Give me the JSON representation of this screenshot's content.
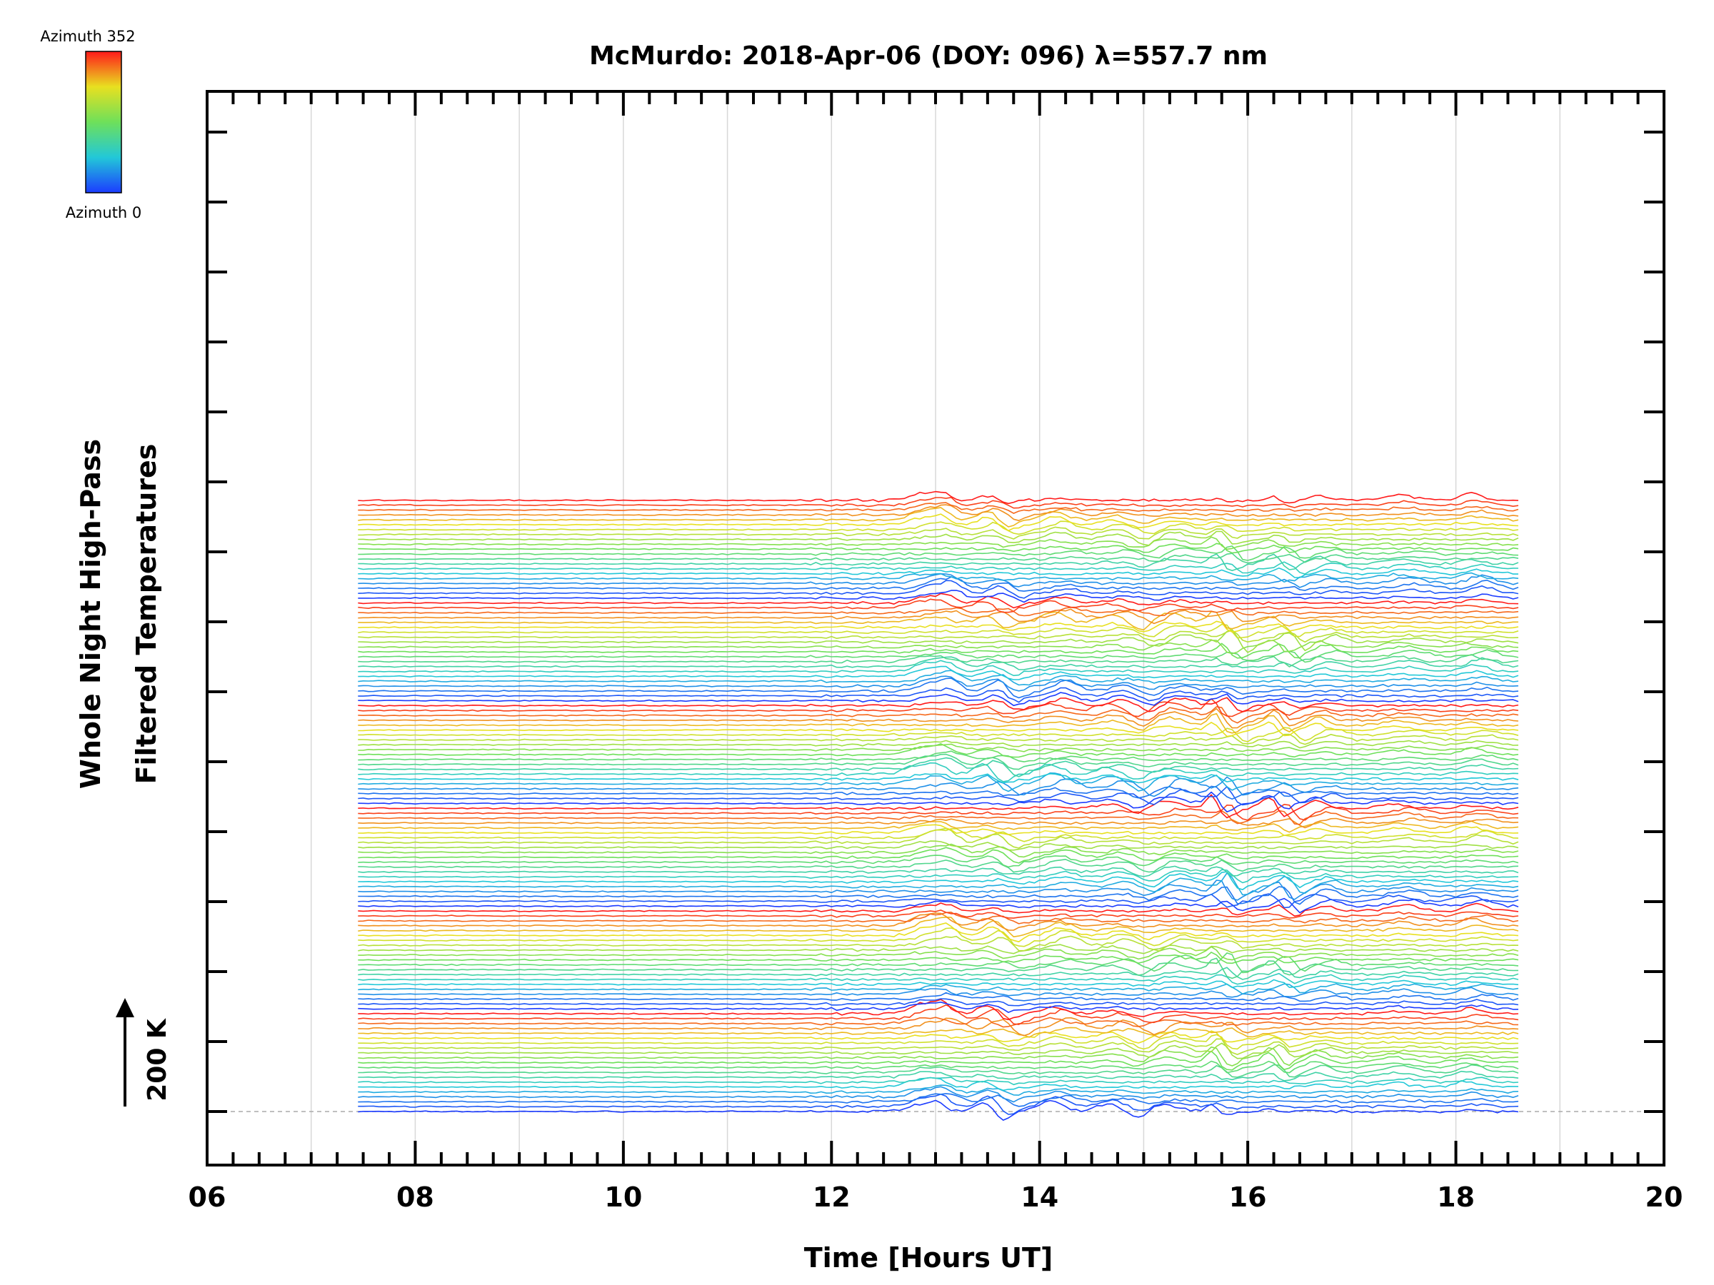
{
  "chart_data": {
    "type": "line",
    "title": "McMurdo: 2018-Apr-06 (DOY: 096) λ=557.7 nm",
    "xlabel": "Time [Hours UT]",
    "ylabel_line1": "Whole Night High-Pass",
    "ylabel_line2": "Filtered Temperatures",
    "scale_label": "200 K",
    "xlim": [
      6,
      20
    ],
    "x_ticks": [
      "06",
      "08",
      "10",
      "12",
      "14",
      "16",
      "18",
      "20"
    ],
    "data_start_hour": 7.45,
    "data_end_hour": 18.6,
    "series_count": 126,
    "colorbar": {
      "top_label": "Azimuth 352",
      "bottom_label": "Azimuth 0",
      "min": 0,
      "max": 352,
      "colormap": "rainbow"
    },
    "grid": true,
    "legend": "none"
  }
}
